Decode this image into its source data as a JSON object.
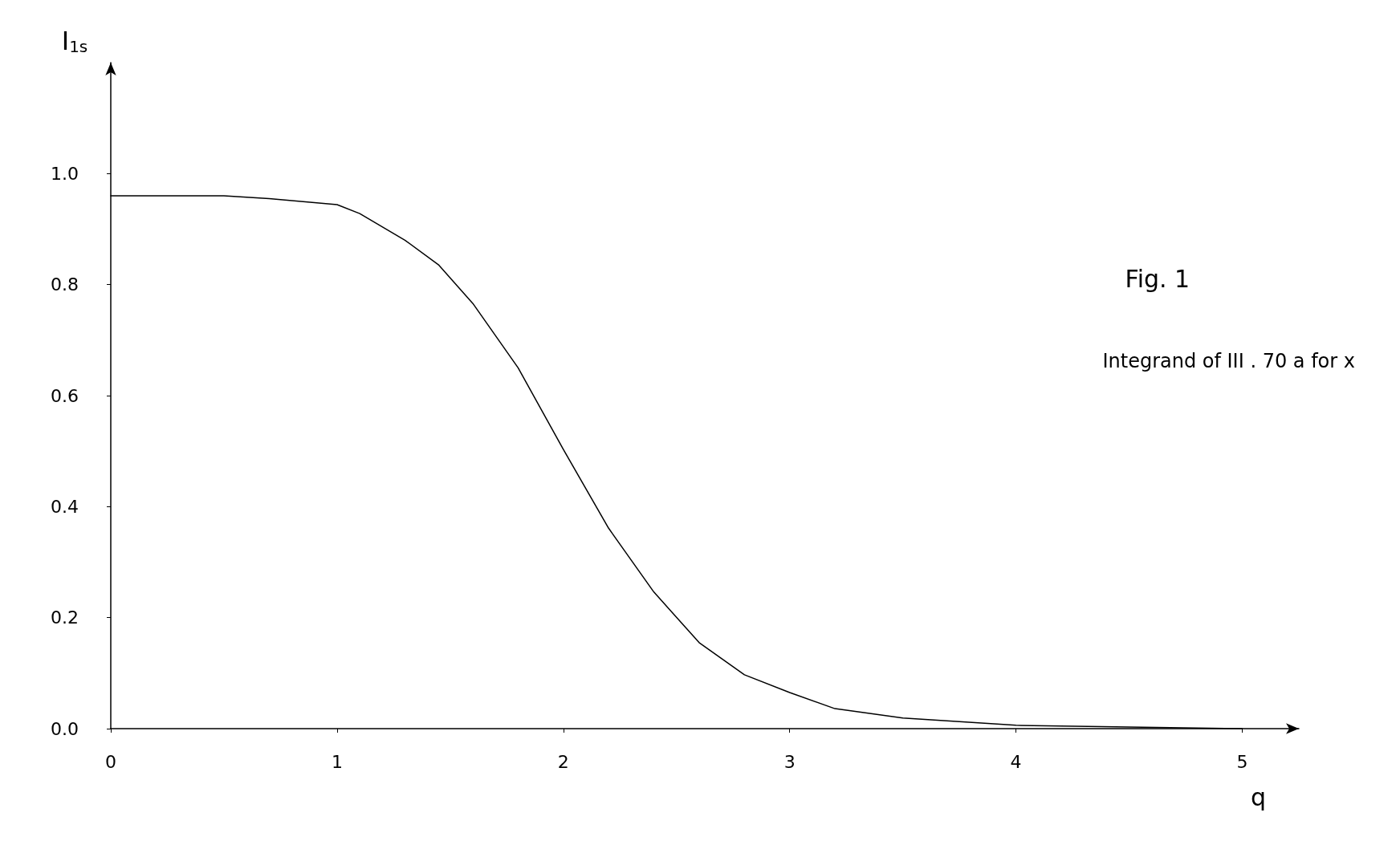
{
  "chart_data": {
    "type": "line",
    "title": "Fig. 1",
    "annotations": [
      "Integrand of III . 70 a for x"
    ],
    "xlabel": "q",
    "ylabel": "I$_{1s}$",
    "x": [
      0,
      0.3,
      0.5,
      0.7,
      1.0,
      1.1,
      1.3,
      1.45,
      1.6,
      1.8,
      2.0,
      2.2,
      2.4,
      2.6,
      2.8,
      3.0,
      3.2,
      3.5,
      4.0,
      4.5,
      5.0
    ],
    "series": [
      {
        "color": "#000000",
        "values": [
          0.96,
          0.96,
          0.96,
          0.955,
          0.944,
          0.928,
          0.88,
          0.835,
          0.766,
          0.65,
          0.503,
          0.361,
          0.246,
          0.155,
          0.097,
          0.065,
          0.036,
          0.019,
          0.006,
          0.003,
          0.0
        ]
      }
    ],
    "xlim": [
      0,
      5.25
    ],
    "ylim": [
      0,
      1.2
    ],
    "xticks": [
      0,
      1,
      2,
      3,
      4,
      5
    ],
    "yticks": [
      {
        "value": 0,
        "label": "0.0"
      },
      {
        "value": 0.2,
        "label": "0.2"
      },
      {
        "value": 0.4,
        "label": "0.4"
      },
      {
        "value": 0.6,
        "label": "0.6"
      },
      {
        "value": 0.8,
        "label": "0.8"
      },
      {
        "value": 1.0,
        "label": "1.0"
      }
    ],
    "grid": false,
    "marker": "none",
    "line_style": "solid"
  }
}
